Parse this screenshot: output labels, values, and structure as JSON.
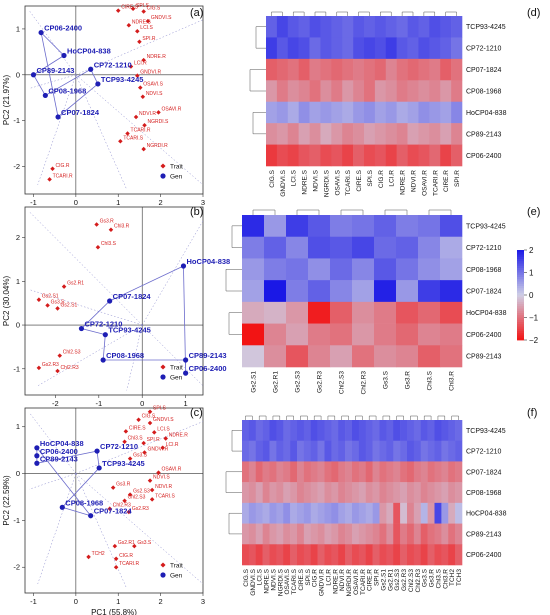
{
  "panel_letters": [
    "(a)",
    "(b)",
    "(c)",
    "(d)",
    "(e)",
    "(f)"
  ],
  "colors": {
    "gen": "#1e1eb4",
    "trait": "#d41c1c",
    "gen_line": "#6c6ccc",
    "high": "#1a18e6",
    "mid": "#cfcfe6",
    "low": "#f21414"
  },
  "colorbar": {
    "ticks": [
      "2",
      "1",
      "0",
      "−1",
      "−2"
    ]
  },
  "chart_data": [
    {
      "type": "scatter",
      "panel": "(a)",
      "xlabel": "PC1 (73.28%)",
      "ylabel": "PC2 (21.97%)",
      "xlim": [
        -1.2,
        3.0
      ],
      "ylim": [
        -2.6,
        1.5
      ],
      "xticks": [
        "-1",
        "0",
        "1",
        "2",
        "3"
      ],
      "yticks": [
        "1",
        "0",
        "-1",
        "-2"
      ],
      "legend": {
        "position": "bottom-right",
        "items": [
          "Trait",
          "Gen"
        ]
      },
      "genotypes": [
        {
          "label": "CP06-2400",
          "x": -0.82,
          "y": 0.92
        },
        {
          "label": "HoCP04-838",
          "x": -0.28,
          "y": 0.42
        },
        {
          "label": "CP89-2143",
          "x": -1.0,
          "y": 0.0
        },
        {
          "label": "CP08-1968",
          "x": -0.72,
          "y": -0.45
        },
        {
          "label": "CP72-1210",
          "x": 0.35,
          "y": 0.12
        },
        {
          "label": "TCP93-4245",
          "x": 0.52,
          "y": -0.2
        },
        {
          "label": "CP07-1824",
          "x": -0.42,
          "y": -0.92
        }
      ],
      "traits": [
        {
          "label": "CIG.S",
          "x": 1.6,
          "y": 1.38
        },
        {
          "label": "SPI.S",
          "x": 1.35,
          "y": 1.44
        },
        {
          "label": "CIRE.S",
          "x": 1.0,
          "y": 1.4
        },
        {
          "label": "GNDVI.S",
          "x": 1.7,
          "y": 1.17
        },
        {
          "label": "NDRE.S",
          "x": 1.25,
          "y": 1.08
        },
        {
          "label": "LCI.S",
          "x": 1.45,
          "y": 0.95
        },
        {
          "label": "SPI.R",
          "x": 1.5,
          "y": 0.72
        },
        {
          "label": "NDRE.R",
          "x": 1.6,
          "y": 0.32
        },
        {
          "label": "LCI.R",
          "x": 1.3,
          "y": 0.18
        },
        {
          "label": "GNDVI.R",
          "x": 1.45,
          "y": -0.02
        },
        {
          "label": "OSAVI.S",
          "x": 1.52,
          "y": -0.28
        },
        {
          "label": "NDVI.S",
          "x": 1.58,
          "y": -0.48
        },
        {
          "label": "OSAVI.R",
          "x": 1.95,
          "y": -0.82
        },
        {
          "label": "NDVI.R",
          "x": 1.42,
          "y": -0.92
        },
        {
          "label": "NGRDI.S",
          "x": 1.62,
          "y": -1.1
        },
        {
          "label": "TCARI.R",
          "x": 1.22,
          "y": -1.28
        },
        {
          "label": "TCARI.S",
          "x": 1.05,
          "y": -1.45
        },
        {
          "label": "NGRDI.R",
          "x": 1.6,
          "y": -1.62
        },
        {
          "label": "CIG.R",
          "x": -0.55,
          "y": -2.05
        },
        {
          "label": "TCARI.R",
          "x": -0.62,
          "y": -2.28
        }
      ]
    },
    {
      "type": "scatter",
      "panel": "(b)",
      "xlabel": "PC1 (45.07%)",
      "ylabel": "PC2 (30.04%)",
      "xlim": [
        -2.7,
        1.4
      ],
      "ylim": [
        -1.6,
        2.7
      ],
      "xticks": [
        "-2",
        "-1",
        "0",
        "1"
      ],
      "yticks": [
        "2",
        "1",
        "0",
        "-1"
      ],
      "legend": {
        "position": "bottom-right",
        "items": [
          "Trait",
          "Gen"
        ]
      },
      "genotypes": [
        {
          "label": "HoCP04-838",
          "x": 0.95,
          "y": 1.35
        },
        {
          "label": "CP07-1824",
          "x": -0.75,
          "y": 0.55
        },
        {
          "label": "CP72-1210",
          "x": -1.4,
          "y": -0.08
        },
        {
          "label": "TCP93-4245",
          "x": -0.85,
          "y": -0.22
        },
        {
          "label": "CP08-1968",
          "x": -0.9,
          "y": -0.8
        },
        {
          "label": "CP89-2143",
          "x": 1.0,
          "y": -0.8
        },
        {
          "label": "CP06-2400",
          "x": 1.0,
          "y": -1.1
        }
      ],
      "traits": [
        {
          "label": "Gs3.R",
          "x": -1.05,
          "y": 2.3
        },
        {
          "label": "Chl3.R",
          "x": -0.72,
          "y": 2.18
        },
        {
          "label": "Chl3.S",
          "x": -1.02,
          "y": 1.78
        },
        {
          "label": "Gs2.R1",
          "x": -1.8,
          "y": 0.88
        },
        {
          "label": "Gs2.S1",
          "x": -2.38,
          "y": 0.58
        },
        {
          "label": "Gs3.S",
          "x": -2.18,
          "y": 0.45
        },
        {
          "label": "Gs2.S1",
          "x": -1.95,
          "y": 0.38
        },
        {
          "label": "Chl2.S3",
          "x": -1.9,
          "y": -0.7
        },
        {
          "label": "Gs2.R3",
          "x": -2.38,
          "y": -0.98
        },
        {
          "label": "Chl2.R3",
          "x": -1.95,
          "y": -1.05
        }
      ]
    },
    {
      "type": "scatter",
      "panel": "(c)",
      "xlabel": "PC1 (55.8%)",
      "ylabel": "PC2 (22.59%)",
      "xlim": [
        -1.2,
        3.0
      ],
      "ylim": [
        -2.55,
        1.4
      ],
      "xticks": [
        "-1",
        "0",
        "1",
        "2",
        "3"
      ],
      "yticks": [
        "1",
        "0",
        "-1",
        "-2"
      ],
      "legend": {
        "position": "bottom-right",
        "items": [
          "Trait",
          "Gen"
        ]
      },
      "genotypes": [
        {
          "label": "HoCP04-838",
          "x": -0.92,
          "y": 0.55
        },
        {
          "label": "CP06-2400",
          "x": -0.92,
          "y": 0.38
        },
        {
          "label": "CP89-2143",
          "x": -0.92,
          "y": 0.22
        },
        {
          "label": "CP72-1210",
          "x": 0.5,
          "y": 0.48
        },
        {
          "label": "TCP93-4245",
          "x": 0.55,
          "y": 0.12
        },
        {
          "label": "CP08-1968",
          "x": -0.32,
          "y": -0.72
        },
        {
          "label": "CP07-1824",
          "x": 0.35,
          "y": -0.9
        }
      ],
      "traits": [
        {
          "label": "SPI.S",
          "x": 1.75,
          "y": 1.32
        },
        {
          "label": "CIG.S",
          "x": 1.48,
          "y": 1.15
        },
        {
          "label": "GNDVI.S",
          "x": 1.75,
          "y": 1.08
        },
        {
          "label": "CIRE.S",
          "x": 1.18,
          "y": 0.9
        },
        {
          "label": "LCI.S",
          "x": 1.85,
          "y": 0.88
        },
        {
          "label": "NDRE.R",
          "x": 2.12,
          "y": 0.75
        },
        {
          "label": "Chl3.S",
          "x": 1.15,
          "y": 0.68
        },
        {
          "label": "SPI.R",
          "x": 1.6,
          "y": 0.65
        },
        {
          "label": "LCI.R",
          "x": 2.05,
          "y": 0.55
        },
        {
          "label": "GNDVI.R",
          "x": 1.62,
          "y": 0.45
        },
        {
          "label": "Gs3.S",
          "x": 1.28,
          "y": 0.32
        },
        {
          "label": "OSAVI.R",
          "x": 1.95,
          "y": 0.02
        },
        {
          "label": "NDVI.S",
          "x": 1.75,
          "y": -0.15
        },
        {
          "label": "Gs3.R",
          "x": 0.88,
          "y": -0.3
        },
        {
          "label": "Gs2.S3",
          "x": 1.28,
          "y": -0.45
        },
        {
          "label": "NDVI.R",
          "x": 1.8,
          "y": -0.35
        },
        {
          "label": "Chl2.S3",
          "x": 1.15,
          "y": -0.58
        },
        {
          "label": "TCARI.S",
          "x": 1.8,
          "y": -0.55
        },
        {
          "label": "Chl2.R3",
          "x": 0.8,
          "y": -0.75
        },
        {
          "label": "Gs2.R3",
          "x": 1.25,
          "y": -0.82
        },
        {
          "label": "Gs2.R1",
          "x": 0.92,
          "y": -1.55
        },
        {
          "label": "Gs3.S",
          "x": 1.38,
          "y": -1.55
        },
        {
          "label": "TCH2",
          "x": 0.3,
          "y": -1.78
        },
        {
          "label": "CIG.R",
          "x": 0.95,
          "y": -1.82
        },
        {
          "label": "TCARI.R",
          "x": 0.95,
          "y": -2.0
        }
      ]
    },
    {
      "type": "heatmap",
      "panel": "(d)",
      "rows": [
        "TCP93-4245",
        "CP72-1210",
        "CP07-1824",
        "CP08-1968",
        "HoCP04-838",
        "CP89-2143",
        "CP06-2400"
      ],
      "columns": [
        "CIG.S",
        "GNDVI.S",
        "LCI.S",
        "NDRE.S",
        "NDVI.S",
        "NGRDI.S",
        "OSAVI.S",
        "TCARI.S",
        "CIRE.S",
        "SPI.S",
        "CIG.R",
        "LCI.R",
        "NDRE.R",
        "NDVI.R",
        "OSAVI.R",
        "TCARI.R",
        "CIRE.R",
        "SPI.R"
      ],
      "values": [
        [
          1.2,
          1.5,
          1.3,
          1.2,
          1.4,
          1.3,
          1.2,
          1.1,
          1.3,
          1.2,
          1.3,
          1.2,
          1.1,
          1.3,
          1.2,
          1.4,
          1.3,
          1.2
        ],
        [
          1.6,
          1.3,
          1.5,
          1.4,
          1.1,
          1.3,
          1.2,
          1.1,
          1.4,
          1.5,
          1.4,
          1.6,
          1.3,
          1.2,
          1.4,
          1.3,
          1.2,
          1.0
        ],
        [
          -1.2,
          -1.1,
          -1.0,
          -1.2,
          -0.9,
          -1.0,
          -1.1,
          -1.0,
          -0.9,
          -1.0,
          -1.1,
          -0.8,
          -1.0,
          -1.1,
          -1.0,
          -0.9,
          -1.2,
          -1.0
        ],
        [
          -0.6,
          -0.9,
          -0.7,
          -0.8,
          -1.0,
          -0.7,
          -0.9,
          -0.6,
          -0.8,
          -1.0,
          -0.6,
          -0.7,
          -0.9,
          -0.8,
          -0.7,
          -0.8,
          -0.6,
          -0.9
        ],
        [
          0.5,
          0.6,
          0.4,
          0.7,
          0.5,
          0.6,
          0.5,
          0.4,
          0.6,
          0.7,
          0.5,
          0.6,
          0.4,
          0.5,
          0.7,
          0.6,
          0.5,
          0.8
        ],
        [
          -0.7,
          -0.6,
          -0.8,
          -0.5,
          -0.7,
          -0.4,
          -0.6,
          -0.8,
          -0.7,
          -0.5,
          -0.6,
          -0.7,
          -0.8,
          -0.5,
          -0.6,
          -0.7,
          -0.5,
          -0.8
        ],
        [
          -1.6,
          -1.4,
          -1.5,
          -1.3,
          -1.2,
          -1.4,
          -1.3,
          -1.5,
          -1.2,
          -1.4,
          -1.3,
          -1.5,
          -1.2,
          -1.4,
          -1.3,
          -1.1,
          -1.5,
          -1.2
        ]
      ]
    },
    {
      "type": "heatmap",
      "panel": "(e)",
      "rows": [
        "TCP93-4245",
        "CP72-1210",
        "CP08-1968",
        "CP07-1824",
        "HoCP04-838",
        "CP06-2400",
        "CP89-2143"
      ],
      "columns": [
        "Gs2.S1",
        "Gs2.R1",
        "Gs2.S3",
        "Gs2.R3",
        "Chl2.S3",
        "Chl2.R3",
        "Gs3.S",
        "Gs3.R",
        "Chl3.S",
        "Chl3.R"
      ],
      "values": [
        [
          1.8,
          0.6,
          1.6,
          1.3,
          0.9,
          1.0,
          1.2,
          0.9,
          1.0,
          1.4
        ],
        [
          0.9,
          1.2,
          0.8,
          1.4,
          1.3,
          1.5,
          1.1,
          1.2,
          0.8,
          0.4
        ],
        [
          0.6,
          0.9,
          1.0,
          0.7,
          1.1,
          0.8,
          1.3,
          1.0,
          0.7,
          0.5
        ],
        [
          0.5,
          2.0,
          0.9,
          1.2,
          0.8,
          0.5,
          1.9,
          0.6,
          1.6,
          1.8
        ],
        [
          -0.4,
          -0.3,
          -0.6,
          -1.9,
          -1.2,
          -0.7,
          -0.9,
          -1.3,
          -1.1,
          -1.4
        ],
        [
          -2.0,
          -0.8,
          -0.5,
          -0.9,
          -1.0,
          -0.6,
          -0.9,
          -1.1,
          -0.8,
          -0.9
        ],
        [
          -0.1,
          -0.7,
          -1.3,
          -0.8,
          -0.5,
          -1.0,
          -0.7,
          -0.8,
          -1.2,
          -1.0
        ]
      ]
    },
    {
      "type": "heatmap",
      "panel": "(f)",
      "rows": [
        "TCP93-4245",
        "CP72-1210",
        "CP07-1824",
        "CP08-1968",
        "HoCP04-838",
        "CP89-2143",
        "CP06-2400"
      ],
      "columns": [
        "CIG.S",
        "GNDVI.S",
        "LCI.S",
        "NDRE.S",
        "NDVI.S",
        "NGRDI.S",
        "OSAVI.S",
        "TCARI.S",
        "CIRE.S",
        "SPI.S",
        "CIG.R",
        "GNDVI.R",
        "LCI.R",
        "NDRE.R",
        "NDVI.R",
        "NGRDI.R",
        "OSAVI.R",
        "TCARI.R",
        "CIRE.R",
        "SPI.R",
        "Gs2.S1",
        "Gs2.R1",
        "Gs2.S3",
        "Gs2.R3",
        "Chl2.S3",
        "Chl2.R3",
        "Gs3.S",
        "Gs3.R",
        "Chl3.S",
        "Chl3.R",
        "TCH2",
        "TCH3"
      ],
      "values": [
        [
          1.2,
          1.3,
          1.1,
          1.2,
          1.4,
          1.3,
          1.1,
          1.2,
          1.3,
          1.2,
          1.4,
          1.3,
          1.2,
          1.1,
          1.3,
          1.2,
          1.4,
          1.3,
          1.2,
          1.1,
          1.3,
          1.2,
          1.4,
          1.3,
          1.2,
          1.1,
          1.3,
          1.2,
          1.4,
          1.3,
          1.2,
          1.1
        ],
        [
          1.1,
          1.0,
          1.2,
          1.3,
          1.0,
          1.2,
          1.1,
          1.3,
          1.0,
          1.1,
          1.2,
          1.0,
          1.3,
          1.1,
          1.2,
          1.0,
          1.1,
          1.3,
          1.2,
          1.0,
          1.1,
          1.2,
          1.0,
          1.1,
          1.3,
          1.2,
          1.0,
          1.1,
          1.2,
          1.0,
          1.1,
          1.2
        ],
        [
          -1.0,
          -0.8,
          -1.1,
          -0.9,
          -1.0,
          -0.8,
          -0.9,
          -1.1,
          -0.8,
          -1.0,
          -0.9,
          -0.8,
          -1.0,
          -1.1,
          -0.9,
          -0.8,
          -1.0,
          -0.9,
          -1.1,
          -0.8,
          -1.0,
          -0.9,
          -0.8,
          -1.0,
          -1.1,
          -0.9,
          -0.8,
          -1.0,
          -0.9,
          -0.8,
          -1.0,
          -0.9
        ],
        [
          -0.6,
          -0.7,
          -0.5,
          -0.8,
          -0.6,
          -0.7,
          -0.5,
          -0.6,
          -0.8,
          -0.7,
          -0.6,
          -0.5,
          -0.7,
          -0.6,
          -0.8,
          -0.7,
          -0.6,
          -0.5,
          -0.7,
          -0.6,
          -0.8,
          -0.7,
          -0.6,
          -0.5,
          -0.7,
          -0.6,
          -0.8,
          -0.7,
          -0.6,
          -0.5,
          -0.7,
          -0.6
        ],
        [
          0.4,
          0.6,
          0.5,
          0.4,
          0.6,
          0.5,
          0.7,
          0.4,
          0.5,
          0.6,
          0.4,
          0.5,
          0.6,
          0.7,
          0.5,
          0.4,
          0.6,
          0.5,
          0.4,
          0.6,
          -0.6,
          -0.4,
          -1.3,
          -0.2,
          -0.8,
          -0.5,
          0.3,
          -0.6,
          1.5,
          0.6,
          -0.4,
          0.2
        ],
        [
          -0.6,
          -0.7,
          -0.5,
          -0.8,
          -0.6,
          -0.5,
          -0.7,
          -0.6,
          -0.8,
          -0.5,
          -0.6,
          -0.7,
          -0.5,
          -0.6,
          -0.8,
          -0.7,
          -0.5,
          -0.6,
          -0.7,
          -0.8,
          -1.0,
          -0.7,
          -1.3,
          -0.9,
          -1.1,
          -0.8,
          -1.2,
          -1.0,
          -0.9,
          -0.7,
          -1.0,
          -0.8
        ],
        [
          -1.4,
          -1.3,
          -1.5,
          -1.2,
          -1.4,
          -1.3,
          -1.5,
          -1.2,
          -1.4,
          -1.3,
          -1.5,
          -1.2,
          -1.4,
          -1.3,
          -1.5,
          -1.2,
          -1.4,
          -1.3,
          -1.5,
          -1.2,
          -1.4,
          -1.3,
          -1.5,
          -1.2,
          -1.4,
          -1.3,
          -1.5,
          -1.2,
          -1.4,
          -1.3,
          -1.5,
          -1.2
        ]
      ]
    }
  ]
}
